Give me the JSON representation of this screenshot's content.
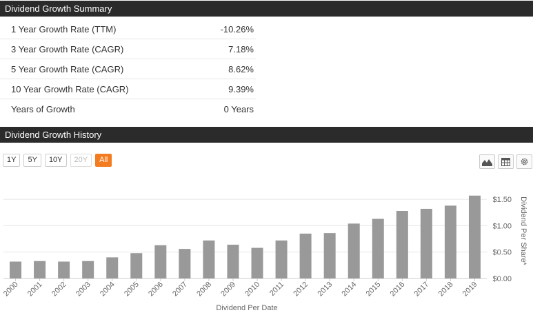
{
  "summary": {
    "title": "Dividend Growth Summary",
    "rows": [
      {
        "label": "1 Year Growth Rate (TTM)",
        "value": "-10.26%"
      },
      {
        "label": "3 Year Growth Rate (CAGR)",
        "value": "7.18%"
      },
      {
        "label": "5 Year Growth Rate (CAGR)",
        "value": "8.62%"
      },
      {
        "label": "10 Year Growth Rate (CAGR)",
        "value": "9.39%"
      },
      {
        "label": "Years of Growth",
        "value": "0 Years"
      }
    ]
  },
  "history": {
    "title": "Dividend Growth History",
    "range_buttons": [
      "1Y",
      "5Y",
      "10Y",
      "20Y",
      "All"
    ],
    "disabled_button": "20Y",
    "active_button": "All",
    "icons": [
      "area-chart-icon",
      "table-icon",
      "gear-icon"
    ]
  },
  "colors": {
    "header_bg": "#2b2b2b",
    "accent": "#f47c20",
    "bar": "#999999"
  },
  "chart_data": {
    "type": "bar",
    "xlabel": "Dividend Per Date",
    "ylabel": "Dividend Per Share*",
    "ylim": [
      0,
      1.75
    ],
    "yticks": [
      0,
      0.5,
      1.0,
      1.5
    ],
    "ytick_labels": [
      "$0.00",
      "$0.50",
      "$1.00",
      "$1.50"
    ],
    "categories": [
      "2000",
      "2001",
      "2002",
      "2003",
      "2004",
      "2005",
      "2006",
      "2007",
      "2008",
      "2009",
      "2010",
      "2011",
      "2012",
      "2013",
      "2014",
      "2015",
      "2016",
      "2017",
      "2018",
      "2019"
    ],
    "values": [
      0.32,
      0.33,
      0.32,
      0.33,
      0.4,
      0.48,
      0.63,
      0.56,
      0.72,
      0.64,
      0.58,
      0.72,
      0.85,
      0.86,
      1.04,
      1.13,
      1.28,
      1.32,
      1.38,
      1.57
    ],
    "grid": true
  }
}
